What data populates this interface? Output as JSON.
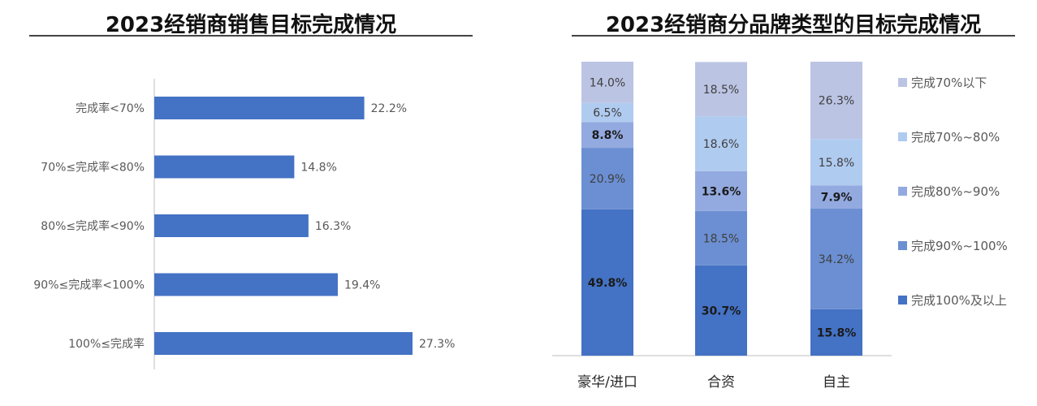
{
  "chart_data": [
    {
      "type": "bar",
      "orientation": "horizontal",
      "title": "2023经销商销售目标完成情况",
      "categories": [
        "完成率<70%",
        "70%≤完成率<80%",
        "80%≤完成率<90%",
        "90%≤完成率<100%",
        "100%≤完成率"
      ],
      "values": [
        22.2,
        14.8,
        16.3,
        19.4,
        27.3
      ],
      "value_labels": [
        "22.2%",
        "14.8%",
        "16.3%",
        "19.4%",
        "27.3%"
      ],
      "unit": "%",
      "xlim": [
        0,
        30
      ],
      "grid": false,
      "colors": {
        "bar": "#4472c4"
      }
    },
    {
      "type": "bar",
      "stacked": true,
      "title": "2023经销商分品牌类型的目标完成情况",
      "categories": [
        "豪华/进口",
        "合资",
        "自主"
      ],
      "series": [
        {
          "name": "完成100%及以上",
          "values": [
            49.8,
            30.7,
            15.8
          ],
          "labels": [
            "49.8%",
            "30.7%",
            "15.8%"
          ],
          "color": "#4472c4",
          "bold": true
        },
        {
          "name": "完成90%~100%",
          "values": [
            20.9,
            18.5,
            34.2
          ],
          "labels": [
            "20.9%",
            "18.5%",
            "34.2%"
          ],
          "color": "#6b8fd2",
          "bold": false
        },
        {
          "name": "完成80%~90%",
          "values": [
            8.8,
            13.6,
            7.9
          ],
          "labels": [
            "8.8%",
            "13.6%",
            "7.9%"
          ],
          "color": "#93aae0",
          "bold": true
        },
        {
          "name": "完成70%~80%",
          "values": [
            6.5,
            18.6,
            15.8
          ],
          "labels": [
            "6.5%",
            "18.6%",
            "15.8%"
          ],
          "color": "#b0cbf0",
          "bold": false
        },
        {
          "name": "完成70%以下",
          "values": [
            14.0,
            18.5,
            26.3
          ],
          "labels": [
            "14.0%",
            "18.5%",
            "26.3%"
          ],
          "color": "#bcc4e4",
          "bold": false
        }
      ],
      "ylim": [
        0,
        100
      ],
      "legend_position": "right",
      "grid": false
    }
  ]
}
